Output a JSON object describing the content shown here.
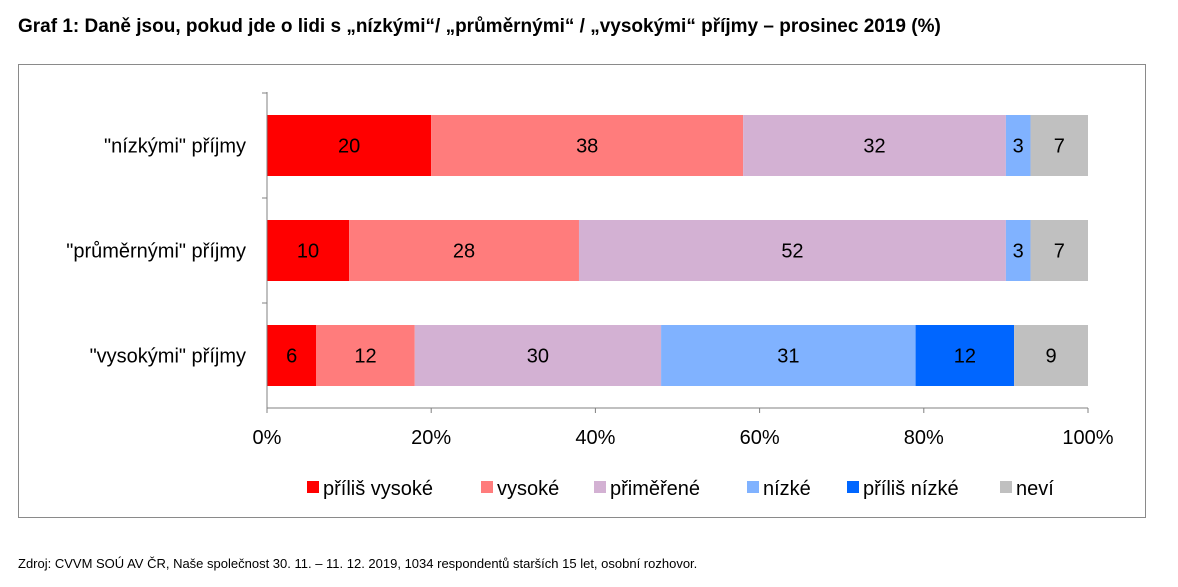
{
  "title": "Graf 1: Daně jsou, pokud jde o lidi s „nízkými“/ „průměrnými“ / „vysokými“ příjmy – prosinec 2019 (%)",
  "source": "Zdroj: CVVM SOÚ AV ČR, Naše společnost 30. 11. – 11. 12. 2019, 1034 respondentů starších 15 let, osobní rozhovor.",
  "chart_data": {
    "type": "bar",
    "orientation": "horizontal",
    "stacked": true,
    "categories": [
      "\"nízkými\" příjmy",
      "\"průměrnými\" příjmy",
      "\"vysokými\" příjmy"
    ],
    "series": [
      {
        "name": "příliš vysoké",
        "color": "#ff0000",
        "values": [
          20,
          10,
          6
        ]
      },
      {
        "name": "vysoké",
        "color": "#ff7c7c",
        "values": [
          38,
          28,
          12
        ]
      },
      {
        "name": "přiměřené",
        "color": "#d3b1d3",
        "values": [
          32,
          52,
          30
        ]
      },
      {
        "name": "nízké",
        "color": "#80b2ff",
        "values": [
          3,
          3,
          31
        ]
      },
      {
        "name": "příliš nízké",
        "color": "#0066ff",
        "values": [
          0,
          0,
          12
        ]
      },
      {
        "name": "neví",
        "color": "#c0c0c0",
        "values": [
          7,
          7,
          9
        ]
      }
    ],
    "x_ticks": [
      "0%",
      "20%",
      "40%",
      "60%",
      "80%",
      "100%"
    ],
    "xlim": [
      0,
      100
    ],
    "grid": false,
    "legend_position": "bottom"
  }
}
